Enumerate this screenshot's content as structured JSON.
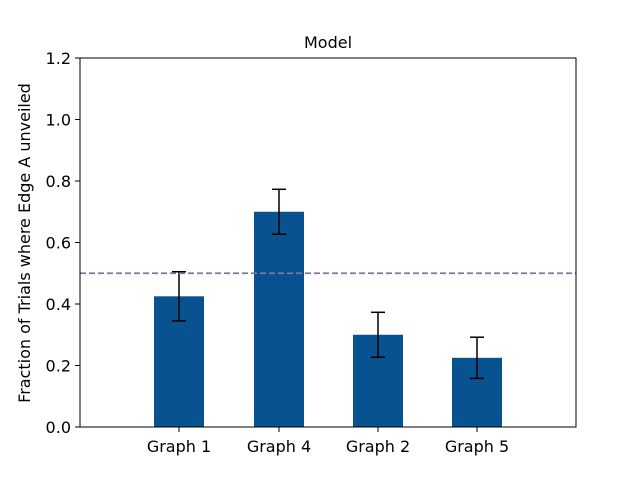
{
  "chart_data": {
    "type": "bar",
    "title": "Model",
    "xlabel": "",
    "ylabel": "Fraction of Trials where Edge A unveiled",
    "categories": [
      "Graph 1",
      "Graph 4",
      "Graph 2",
      "Graph 5"
    ],
    "values": [
      0.425,
      0.7,
      0.3,
      0.225
    ],
    "error": [
      0.08,
      0.073,
      0.073,
      0.067
    ],
    "ylim": [
      0,
      1.2
    ],
    "yticks": [
      "0.0",
      "0.2",
      "0.4",
      "0.6",
      "0.8",
      "1.0",
      "1.2"
    ],
    "reference_line": 0.5,
    "grid": false,
    "colors": {
      "bar": "#08528f",
      "errorbar": "#000000",
      "reference_line": "#7a7a9a"
    }
  }
}
